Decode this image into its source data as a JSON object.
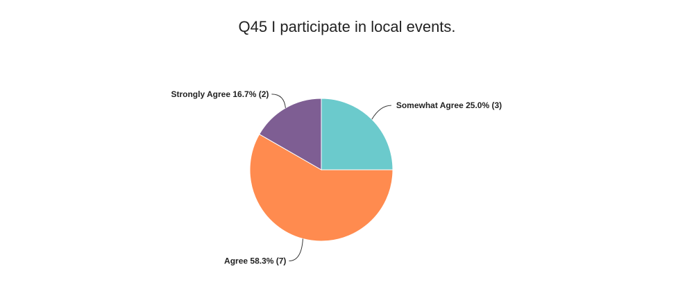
{
  "chart_data": {
    "type": "pie",
    "title": "Q45 I participate in local events.",
    "categories": [
      "Somewhat Agree",
      "Agree",
      "Strongly Agree"
    ],
    "values": [
      25.0,
      58.3,
      16.7
    ],
    "value_labels": [
      "25.0% (3)",
      "58.3% (7)",
      "16.7% (2)"
    ],
    "colors": [
      "#6bcacc",
      "#ff8b4f",
      "#7e5e93"
    ]
  }
}
